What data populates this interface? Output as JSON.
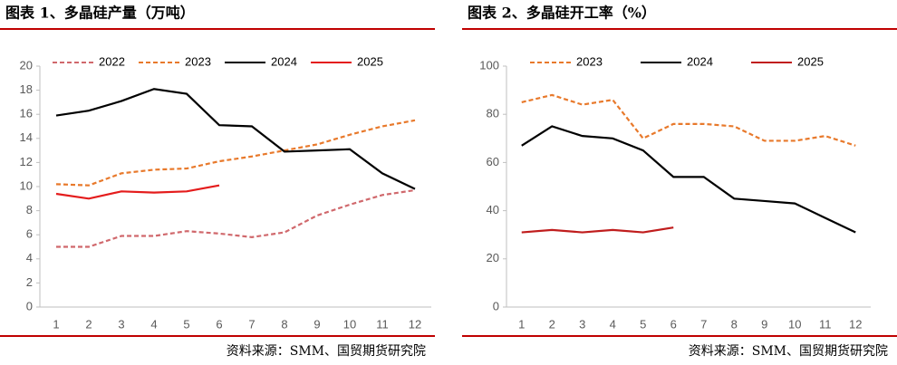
{
  "chart_data": [
    {
      "type": "line",
      "title": "图表 1、多晶硅产量（万吨）",
      "source": "资料来源：SMM、国贸期货研究院",
      "categories": [
        "1",
        "2",
        "3",
        "4",
        "5",
        "6",
        "7",
        "8",
        "9",
        "10",
        "11",
        "12"
      ],
      "ylim": [
        0,
        20
      ],
      "yticks": [
        0,
        2,
        4,
        6,
        8,
        10,
        12,
        14,
        16,
        18,
        20
      ],
      "series": [
        {
          "name": "2022",
          "color": "#d0686c",
          "style": "dashed",
          "values": [
            5.0,
            5.0,
            5.9,
            5.9,
            6.3,
            6.1,
            5.8,
            6.2,
            7.6,
            8.5,
            9.3,
            9.7
          ]
        },
        {
          "name": "2023",
          "color": "#e8792b",
          "style": "dashed",
          "values": [
            10.2,
            10.1,
            11.1,
            11.4,
            11.5,
            12.1,
            12.5,
            13.0,
            13.5,
            14.3,
            15.0,
            15.5
          ]
        },
        {
          "name": "2024",
          "color": "#000000",
          "style": "solid",
          "values": [
            15.9,
            16.3,
            17.1,
            18.1,
            17.7,
            15.1,
            15.0,
            12.9,
            13.0,
            13.1,
            11.1,
            9.8
          ]
        },
        {
          "name": "2025",
          "color": "#e41c1c",
          "style": "solid",
          "values": [
            9.4,
            9.0,
            9.6,
            9.5,
            9.6,
            10.1,
            null,
            null,
            null,
            null,
            null,
            null
          ]
        }
      ]
    },
    {
      "type": "line",
      "title": "图表 2、多晶硅开工率（%）",
      "source": "资料来源：SMM、国贸期货研究院",
      "categories": [
        "1",
        "2",
        "3",
        "4",
        "5",
        "6",
        "7",
        "8",
        "9",
        "10",
        "11",
        "12"
      ],
      "ylim": [
        0,
        100
      ],
      "yticks": [
        0,
        20,
        40,
        60,
        80,
        100
      ],
      "series": [
        {
          "name": "2023",
          "color": "#e8792b",
          "style": "dashed",
          "values": [
            85,
            88,
            84,
            86,
            70,
            76,
            76,
            75,
            69,
            69,
            71,
            67
          ]
        },
        {
          "name": "2024",
          "color": "#000000",
          "style": "solid",
          "values": [
            67,
            75,
            71,
            70,
            65,
            54,
            54,
            45,
            44,
            43,
            37,
            31
          ]
        },
        {
          "name": "2025",
          "color": "#c01d1d",
          "style": "solid",
          "values": [
            31,
            32,
            31,
            32,
            31,
            33,
            null,
            null,
            null,
            null,
            null,
            null
          ]
        }
      ]
    }
  ]
}
